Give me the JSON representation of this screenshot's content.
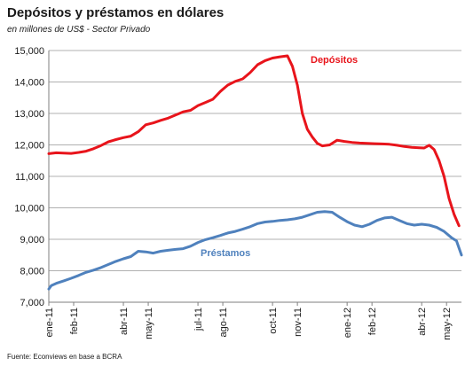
{
  "chart_data": {
    "type": "line",
    "title": "Depósitos y préstamos en dólares",
    "subtitle": "en millones de US$ - Sector Privado",
    "source": "Fuente: Econviews en base a BCRA",
    "ylim": [
      7000,
      15000
    ],
    "yticks": [
      7000,
      8000,
      9000,
      10000,
      11000,
      12000,
      13000,
      14000,
      15000
    ],
    "ytick_labels": [
      "7,000",
      "8,000",
      "9,000",
      "10,000",
      "11,000",
      "12,000",
      "13,000",
      "14,000",
      "15,000"
    ],
    "x_range": [
      0,
      16.6
    ],
    "x_tick_labels": [
      "ene-11",
      "feb-11",
      "abr-11",
      "may-11",
      "jul-11",
      "ago-11",
      "oct-11",
      "nov-11",
      "ene-12",
      "feb-12",
      "abr-12",
      "may-12"
    ],
    "x_tick_positions": [
      0,
      1,
      3,
      4,
      6,
      7,
      9,
      10,
      12,
      13,
      15,
      16
    ],
    "grid": true,
    "series": [
      {
        "name": "Depósitos",
        "color": "#e8141b",
        "x": [
          0,
          0.3,
          0.6,
          0.9,
          1.2,
          1.5,
          1.8,
          2.1,
          2.4,
          2.7,
          3.0,
          3.3,
          3.6,
          3.9,
          4.2,
          4.5,
          4.8,
          5.1,
          5.4,
          5.7,
          6.0,
          6.3,
          6.6,
          6.9,
          7.2,
          7.5,
          7.8,
          8.1,
          8.4,
          8.7,
          9.0,
          9.3,
          9.6,
          9.8,
          10.0,
          10.2,
          10.4,
          10.6,
          10.8,
          11.0,
          11.3,
          11.6,
          11.9,
          12.2,
          12.5,
          12.8,
          13.1,
          13.4,
          13.7,
          14.0,
          14.3,
          14.6,
          14.9,
          15.1,
          15.3,
          15.5,
          15.7,
          15.9,
          16.1,
          16.3,
          16.5
        ],
        "values": [
          11720,
          11750,
          11740,
          11730,
          11760,
          11800,
          11880,
          11980,
          12100,
          12170,
          12230,
          12280,
          12420,
          12640,
          12700,
          12780,
          12850,
          12950,
          13050,
          13100,
          13250,
          13350,
          13450,
          13700,
          13900,
          14020,
          14100,
          14300,
          14550,
          14680,
          14760,
          14800,
          14830,
          14500,
          13900,
          13000,
          12500,
          12250,
          12050,
          11970,
          12000,
          12150,
          12110,
          12080,
          12060,
          12050,
          12040,
          12030,
          12020,
          11990,
          11950,
          11920,
          11910,
          11900,
          11990,
          11850,
          11500,
          11000,
          10300,
          9800,
          9430
        ]
      },
      {
        "name": "Préstamos",
        "color": "#4f81bd",
        "x": [
          0,
          0.1,
          0.3,
          0.6,
          0.9,
          1.2,
          1.5,
          1.8,
          2.1,
          2.4,
          2.7,
          3.0,
          3.3,
          3.6,
          3.9,
          4.2,
          4.5,
          4.8,
          5.1,
          5.4,
          5.7,
          6.0,
          6.3,
          6.6,
          6.9,
          7.2,
          7.5,
          7.8,
          8.1,
          8.4,
          8.7,
          9.0,
          9.3,
          9.6,
          9.9,
          10.2,
          10.5,
          10.8,
          11.1,
          11.4,
          11.7,
          12.0,
          12.3,
          12.6,
          12.9,
          13.2,
          13.5,
          13.8,
          14.1,
          14.4,
          14.7,
          15.0,
          15.3,
          15.6,
          15.9,
          16.2,
          16.4,
          16.6
        ],
        "values": [
          7420,
          7530,
          7600,
          7680,
          7760,
          7850,
          7950,
          8020,
          8100,
          8200,
          8300,
          8380,
          8450,
          8620,
          8600,
          8560,
          8620,
          8650,
          8680,
          8700,
          8780,
          8900,
          8990,
          9050,
          9120,
          9200,
          9250,
          9320,
          9400,
          9500,
          9550,
          9570,
          9600,
          9620,
          9650,
          9700,
          9780,
          9860,
          9880,
          9860,
          9700,
          9560,
          9450,
          9400,
          9480,
          9600,
          9680,
          9700,
          9600,
          9500,
          9450,
          9480,
          9450,
          9380,
          9250,
          9050,
          8950,
          8500
        ]
      }
    ]
  }
}
